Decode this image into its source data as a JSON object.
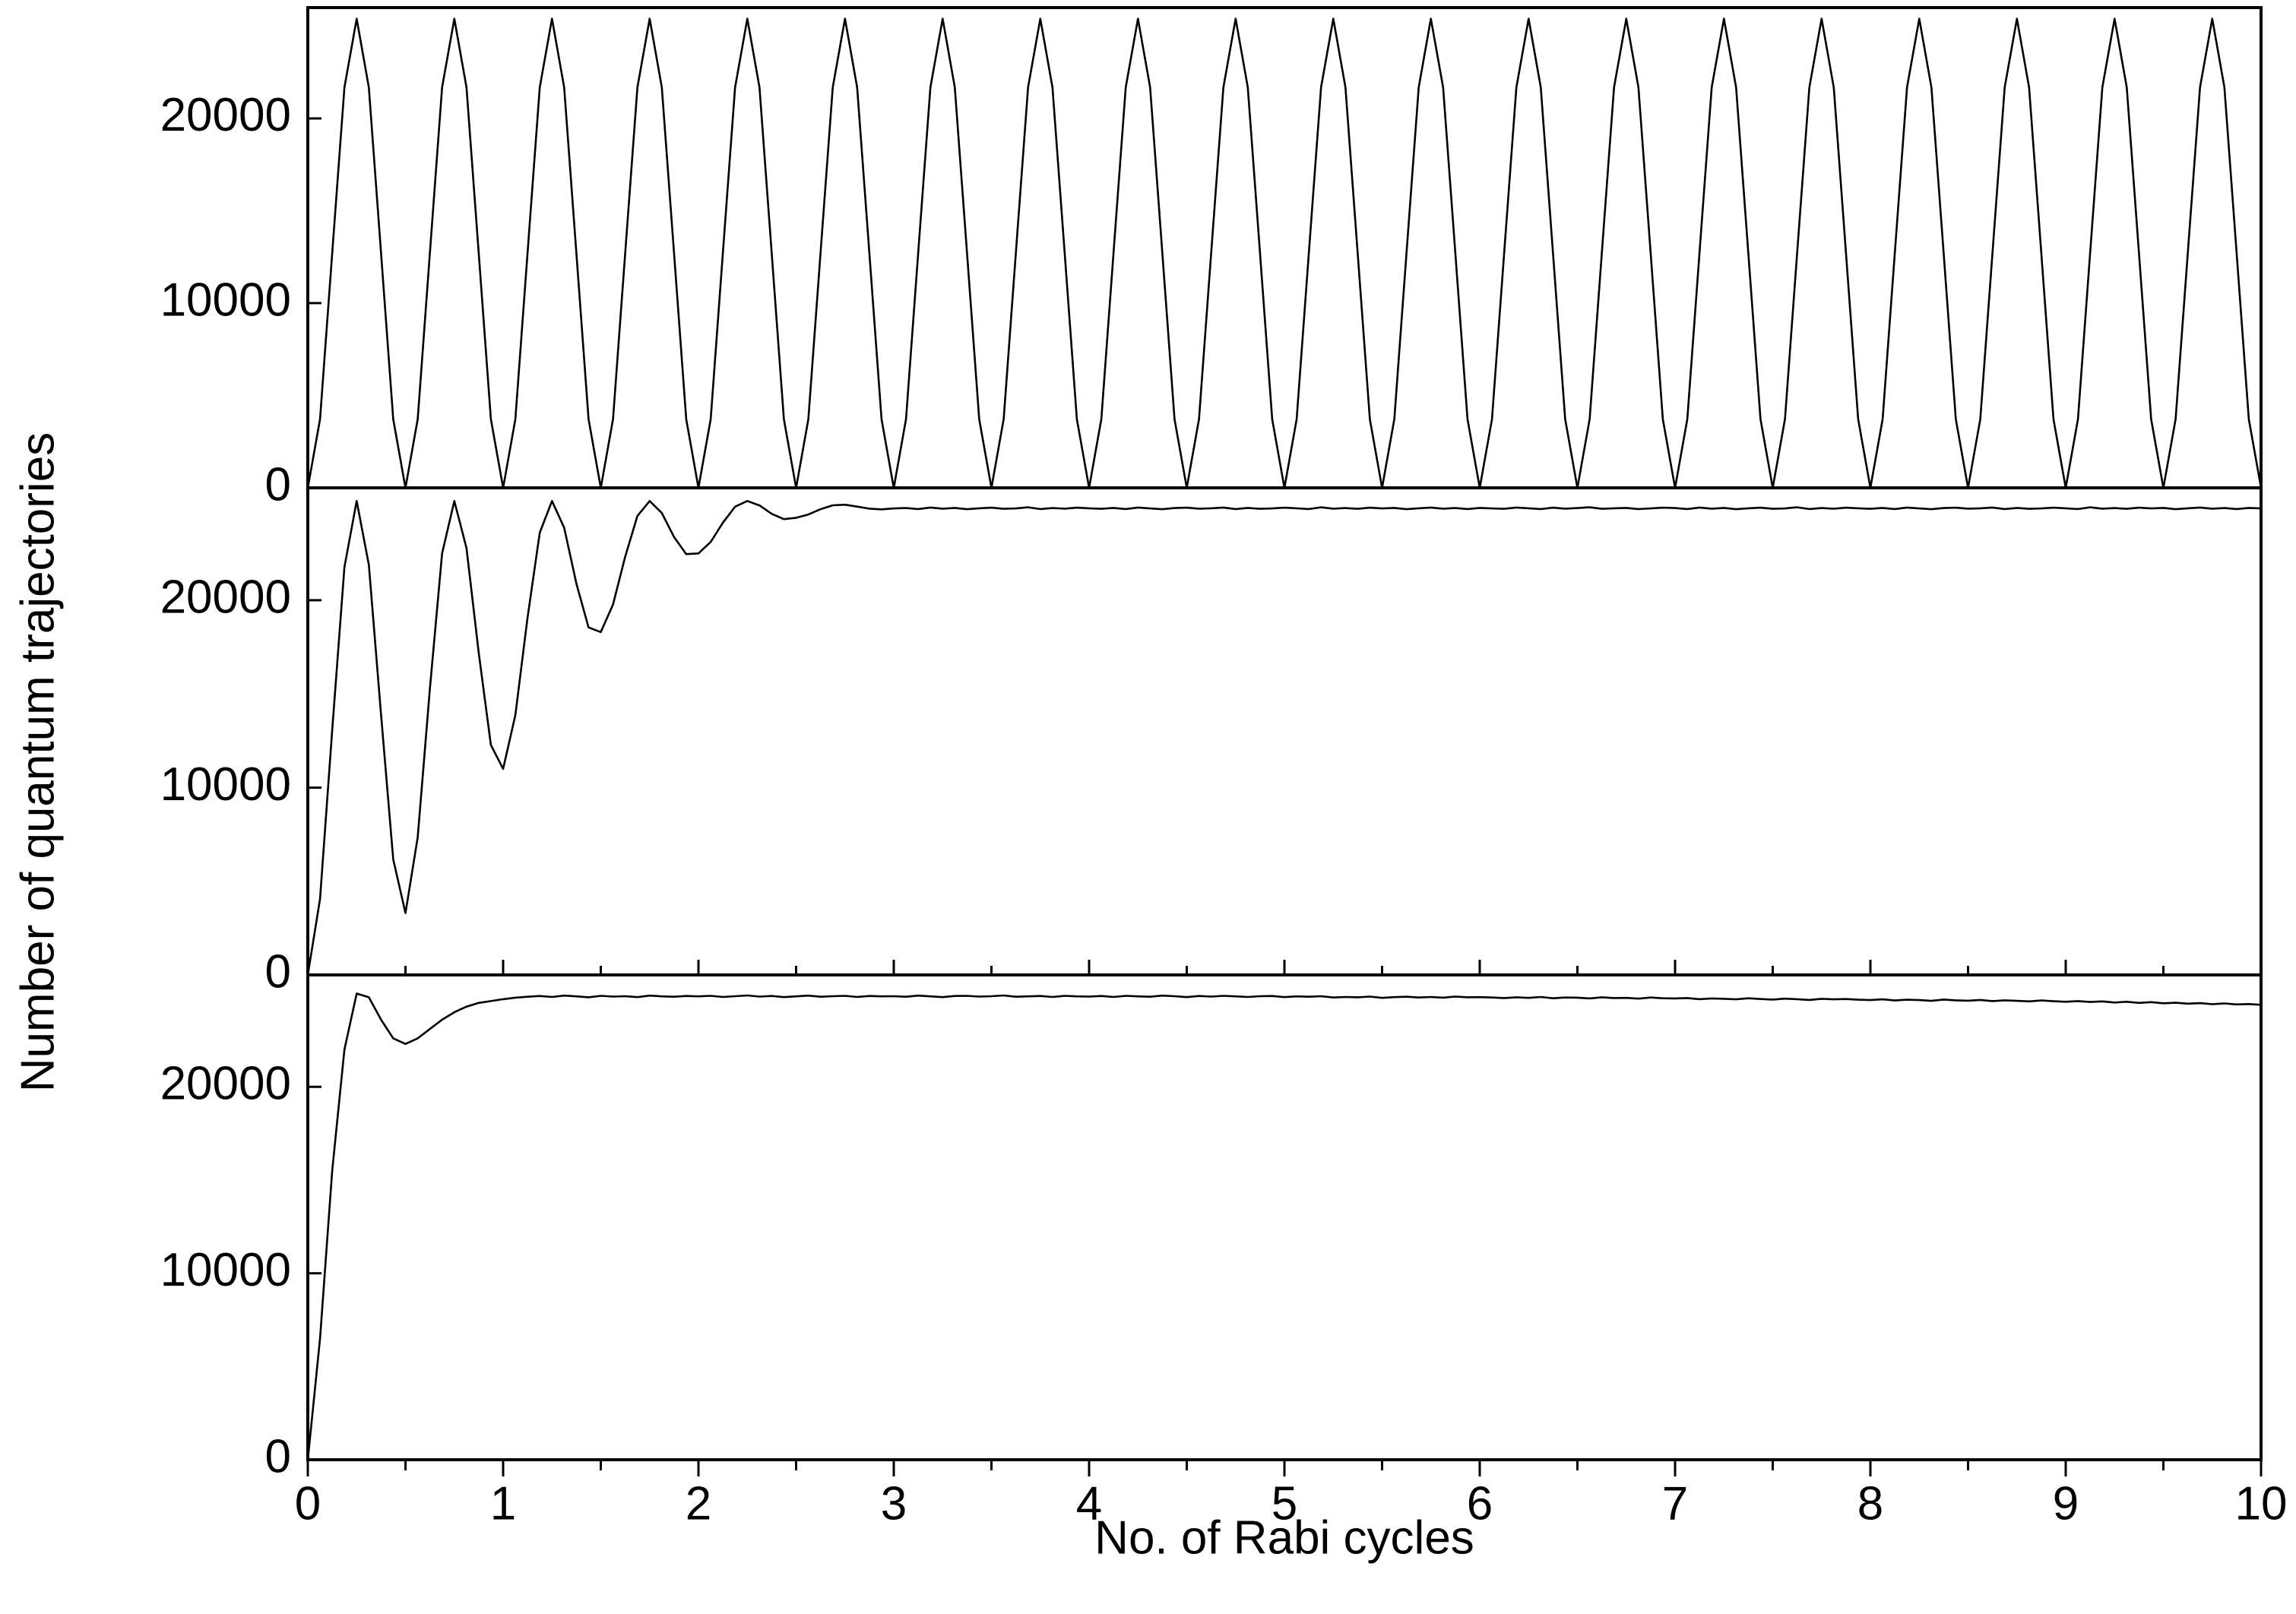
{
  "chart_data": [
    {
      "type": "line",
      "xlim": [
        0,
        10
      ],
      "ylim": [
        0,
        26000
      ],
      "yticks": [
        0,
        10000,
        20000
      ],
      "x": [
        0,
        0.0625,
        0.125,
        0.1875,
        0.25,
        0.3125,
        0.375,
        0.4375,
        0.5,
        0.5625,
        0.625,
        0.6875,
        0.75,
        0.8125,
        0.875,
        0.9375,
        1,
        1.0625,
        1.125,
        1.1875,
        1.25,
        1.3125,
        1.375,
        1.4375,
        1.5,
        1.5625,
        1.625,
        1.6875,
        1.75,
        1.8125,
        1.875,
        1.9375,
        2,
        2.0625,
        2.125,
        2.1875,
        2.25,
        2.3125,
        2.375,
        2.4375,
        2.5,
        2.5625,
        2.625,
        2.6875,
        2.75,
        2.8125,
        2.875,
        2.9375,
        3,
        3.0625,
        3.125,
        3.1875,
        3.25,
        3.3125,
        3.375,
        3.4375,
        3.5,
        3.5625,
        3.625,
        3.6875,
        3.75,
        3.8125,
        3.875,
        3.9375,
        4,
        4.0625,
        4.125,
        4.1875,
        4.25,
        4.3125,
        4.375,
        4.4375,
        4.5,
        4.5625,
        4.625,
        4.6875,
        4.75,
        4.8125,
        4.875,
        4.9375,
        5,
        5.0625,
        5.125,
        5.1875,
        5.25,
        5.3125,
        5.375,
        5.4375,
        5.5,
        5.5625,
        5.625,
        5.6875,
        5.75,
        5.8125,
        5.875,
        5.9375,
        6,
        6.0625,
        6.125,
        6.1875,
        6.25,
        6.3125,
        6.375,
        6.4375,
        6.5,
        6.5625,
        6.625,
        6.6875,
        6.75,
        6.8125,
        6.875,
        6.9375,
        7,
        7.0625,
        7.125,
        7.1875,
        7.25,
        7.3125,
        7.375,
        7.4375,
        7.5,
        7.5625,
        7.625,
        7.6875,
        7.75,
        7.8125,
        7.875,
        7.9375,
        8,
        8.0625,
        8.125,
        8.1875,
        8.25,
        8.3125,
        8.375,
        8.4375,
        8.5,
        8.5625,
        8.625,
        8.6875,
        8.75,
        8.8125,
        8.875,
        8.9375,
        9,
        9.0625,
        9.125,
        9.1875,
        9.25,
        9.3125,
        9.375,
        9.4375,
        9.5,
        9.5625,
        9.625,
        9.6875,
        9.75,
        9.8125,
        9.875,
        9.9375,
        10
      ],
      "series": [
        {
          "color": "#000000",
          "values": [
            0,
            3719,
            12700,
            21681,
            25400,
            21681,
            12700,
            3719,
            0,
            3719,
            12700,
            21681,
            25400,
            21681,
            12700,
            3719,
            0,
            3719,
            12700,
            21681,
            25400,
            21681,
            12700,
            3719,
            0,
            3719,
            12700,
            21681,
            25400,
            21681,
            12700,
            3719,
            0,
            3719,
            12700,
            21681,
            25400,
            21681,
            12700,
            3719,
            0,
            3719,
            12700,
            21681,
            25400,
            21681,
            12700,
            3719,
            0,
            3719,
            12700,
            21681,
            25400,
            21681,
            12700,
            3719,
            0,
            3719,
            12700,
            21681,
            25400,
            21681,
            12700,
            3719,
            0,
            3719,
            12700,
            21681,
            25400,
            21681,
            12700,
            3719,
            0,
            3719,
            12700,
            21681,
            25400,
            21681,
            12700,
            3719,
            0,
            3719,
            12700,
            21681,
            25400,
            21681,
            12700,
            3719,
            0,
            3719,
            12700,
            21681,
            25400,
            21681,
            12700,
            3719,
            0,
            3719,
            12700,
            21681,
            25400,
            21681,
            12700,
            3719,
            0,
            3719,
            12700,
            21681,
            25400,
            21681,
            12700,
            3719,
            0,
            3719,
            12700,
            21681,
            25400,
            21681,
            12700,
            3719,
            0,
            3719,
            12700,
            21681,
            25400,
            21681,
            12700,
            3719,
            0,
            3719,
            12700,
            21681,
            25400,
            21681,
            12700,
            3719,
            0,
            3719,
            12700,
            21681,
            25400,
            21681,
            12700,
            3719,
            0,
            3719,
            12700,
            21681,
            25400,
            21681,
            12700,
            3719,
            0,
            3719,
            12700,
            21681,
            25400,
            21681,
            12700,
            3719,
            0
          ]
        }
      ]
    },
    {
      "type": "line",
      "xlim": [
        0,
        10
      ],
      "ylim": [
        0,
        26000
      ],
      "yticks": [
        0,
        10000,
        20000
      ],
      "ylabel": "Number of quantum trajectories",
      "x": [
        0,
        0.0625,
        0.125,
        0.1875,
        0.25,
        0.3125,
        0.375,
        0.4375,
        0.5,
        0.5625,
        0.625,
        0.6875,
        0.75,
        0.8125,
        0.875,
        0.9375,
        1,
        1.0625,
        1.125,
        1.1875,
        1.25,
        1.3125,
        1.375,
        1.4375,
        1.5,
        1.5625,
        1.625,
        1.6875,
        1.75,
        1.8125,
        1.875,
        1.9375,
        2,
        2.0625,
        2.125,
        2.1875,
        2.25,
        2.3125,
        2.375,
        2.4375,
        2.5,
        2.5625,
        2.625,
        2.6875,
        2.75,
        2.8125,
        2.875,
        2.9375,
        3,
        3.0625,
        3.125,
        3.1875,
        3.25,
        3.3125,
        3.375,
        3.4375,
        3.5,
        3.5625,
        3.625,
        3.6875,
        3.75,
        3.8125,
        3.875,
        3.9375,
        4,
        4.0625,
        4.125,
        4.1875,
        4.25,
        4.3125,
        4.375,
        4.4375,
        4.5,
        4.5625,
        4.625,
        4.6875,
        4.75,
        4.8125,
        4.875,
        4.9375,
        5,
        5.0625,
        5.125,
        5.1875,
        5.25,
        5.3125,
        5.375,
        5.4375,
        5.5,
        5.5625,
        5.625,
        5.6875,
        5.75,
        5.8125,
        5.875,
        5.9375,
        6,
        6.0625,
        6.125,
        6.1875,
        6.25,
        6.3125,
        6.375,
        6.4375,
        6.5,
        6.5625,
        6.625,
        6.6875,
        6.75,
        6.8125,
        6.875,
        6.9375,
        7,
        7.0625,
        7.125,
        7.1875,
        7.25,
        7.3125,
        7.375,
        7.4375,
        7.5,
        7.5625,
        7.625,
        7.6875,
        7.75,
        7.8125,
        7.875,
        7.9375,
        8,
        8.0625,
        8.125,
        8.1875,
        8.25,
        8.3125,
        8.375,
        8.4375,
        8.5,
        8.5625,
        8.625,
        8.6875,
        8.75,
        8.8125,
        8.875,
        8.9375,
        9,
        9.0625,
        9.125,
        9.1875,
        9.25,
        9.3125,
        9.375,
        9.4375,
        9.5,
        9.5625,
        9.625,
        9.6875,
        9.75,
        9.8125,
        9.875,
        9.9375,
        10
      ],
      "series": [
        {
          "color": "#000000",
          "values": [
            0,
            4058,
            13062,
            21774,
            25300,
            21896,
            13888,
            6171,
            3300,
            7344,
            15262,
            22500,
            25300,
            22782,
            17188,
            12274,
            11000,
            13873,
            19062,
            23606,
            25300,
            23873,
            20888,
            18547,
            18300,
            19773,
            22325,
            24505,
            25300,
            24659,
            23375,
            22463,
            22500,
            23113,
            24138,
            24994,
            25300,
            25064,
            24612,
            24329,
            24400,
            24577,
            24862,
            25068,
            25100,
            25000,
            24888,
            24854,
            24900,
            24920,
            24870,
            24950,
            24890,
            24930,
            24860,
            24910,
            24940,
            24880,
            24900,
            24960,
            24870,
            24920,
            24890,
            24940,
            24910,
            24880,
            24930,
            24870,
            24950,
            24900,
            24860,
            24920,
            24940,
            24890,
            24910,
            24950,
            24870,
            24930,
            24880,
            24900,
            24940,
            24910,
            24870,
            24960,
            24890,
            24920,
            24880,
            24940,
            24900,
            24930,
            24860,
            24910,
            24950,
            24890,
            24920,
            24870,
            24930,
            24900,
            24880,
            24950,
            24910,
            24870,
            24940,
            24890,
            24920,
            24960,
            24880,
            24910,
            24930,
            24870,
            24900,
            24940,
            24920,
            24870,
            24950,
            24890,
            24930,
            24860,
            24910,
            24940,
            24880,
            24900,
            24960,
            24870,
            24920,
            24890,
            24940,
            24910,
            24880,
            24930,
            24870,
            24950,
            24900,
            24860,
            24920,
            24940,
            24890,
            24910,
            24950,
            24870,
            24930,
            24880,
            24900,
            24940,
            24910,
            24870,
            24960,
            24890,
            24920,
            24880,
            24940,
            24900,
            24930,
            24860,
            24910,
            24950,
            24890,
            24920,
            24870,
            24930,
            24900
          ]
        }
      ]
    },
    {
      "type": "line",
      "xlim": [
        0,
        10
      ],
      "ylim": [
        0,
        26000
      ],
      "yticks": [
        0,
        10000,
        20000
      ],
      "xticks": [
        0,
        1,
        2,
        3,
        4,
        5,
        6,
        7,
        8,
        9,
        10
      ],
      "xminor_ticks": [
        0.5,
        1.5,
        2.5,
        3.5,
        4.5,
        5.5,
        6.5,
        7.5,
        8.5,
        9.5
      ],
      "xlabel": "No. of Rabi cycles",
      "x": [
        0,
        0.0625,
        0.125,
        0.1875,
        0.25,
        0.3125,
        0.375,
        0.4375,
        0.5,
        0.5625,
        0.625,
        0.6875,
        0.75,
        0.8125,
        0.875,
        0.9375,
        1,
        1.0625,
        1.125,
        1.1875,
        1.25,
        1.3125,
        1.375,
        1.4375,
        1.5,
        1.5625,
        1.625,
        1.6875,
        1.75,
        1.8125,
        1.875,
        1.9375,
        2,
        2.0625,
        2.125,
        2.1875,
        2.25,
        2.3125,
        2.375,
        2.4375,
        2.5,
        2.5625,
        2.625,
        2.6875,
        2.75,
        2.8125,
        2.875,
        2.9375,
        3,
        3.0625,
        3.125,
        3.1875,
        3.25,
        3.3125,
        3.375,
        3.4375,
        3.5,
        3.5625,
        3.625,
        3.6875,
        3.75,
        3.8125,
        3.875,
        3.9375,
        4,
        4.0625,
        4.125,
        4.1875,
        4.25,
        4.3125,
        4.375,
        4.4375,
        4.5,
        4.5625,
        4.625,
        4.6875,
        4.75,
        4.8125,
        4.875,
        4.9375,
        5,
        5.0625,
        5.125,
        5.1875,
        5.25,
        5.3125,
        5.375,
        5.4375,
        5.5,
        5.5625,
        5.625,
        5.6875,
        5.75,
        5.8125,
        5.875,
        5.9375,
        6,
        6.0625,
        6.125,
        6.1875,
        6.25,
        6.3125,
        6.375,
        6.4375,
        6.5,
        6.5625,
        6.625,
        6.6875,
        6.75,
        6.8125,
        6.875,
        6.9375,
        7,
        7.0625,
        7.125,
        7.1875,
        7.25,
        7.3125,
        7.375,
        7.4375,
        7.5,
        7.5625,
        7.625,
        7.6875,
        7.75,
        7.8125,
        7.875,
        7.9375,
        8,
        8.0625,
        8.125,
        8.1875,
        8.25,
        8.3125,
        8.375,
        8.4375,
        8.5,
        8.5625,
        8.625,
        8.6875,
        8.75,
        8.8125,
        8.875,
        8.9375,
        9,
        9.0625,
        9.125,
        9.1875,
        9.25,
        9.3125,
        9.375,
        9.4375,
        9.5,
        9.5625,
        9.625,
        9.6875,
        9.75,
        9.8125,
        9.875,
        9.9375,
        10
      ],
      "series": [
        {
          "color": "#000000",
          "values": [
            0,
            6500,
            15500,
            22000,
            25000,
            24800,
            23600,
            22600,
            22300,
            22600,
            23100,
            23600,
            24000,
            24300,
            24500,
            24600,
            24700,
            24780,
            24830,
            24870,
            24820,
            24890,
            24850,
            24800,
            24880,
            24840,
            24860,
            24810,
            24890,
            24850,
            24830,
            24870,
            24850,
            24880,
            24820,
            24860,
            24900,
            24840,
            24870,
            24810,
            24850,
            24890,
            24830,
            24860,
            24880,
            24820,
            24870,
            24850,
            24860,
            24830,
            24890,
            24850,
            24810,
            24870,
            24880,
            24840,
            24860,
            24900,
            24830,
            24850,
            24870,
            24820,
            24880,
            24850,
            24840,
            24870,
            24820,
            24880,
            24850,
            24830,
            24890,
            24860,
            24810,
            24870,
            24840,
            24880,
            24850,
            24820,
            24860,
            24870,
            24810,
            24850,
            24830,
            24860,
            24790,
            24820,
            24800,
            24840,
            24770,
            24810,
            24830,
            24790,
            24820,
            24780,
            24840,
            24800,
            24810,
            24790,
            24760,
            24800,
            24770,
            24820,
            24750,
            24790,
            24780,
            24740,
            24800,
            24760,
            24770,
            24730,
            24790,
            24750,
            24740,
            24760,
            24700,
            24740,
            24720,
            24690,
            24750,
            24710,
            24680,
            24730,
            24700,
            24660,
            24720,
            24690,
            24710,
            24670,
            24650,
            24690,
            24630,
            24670,
            24650,
            24610,
            24680,
            24640,
            24620,
            24660,
            24600,
            24640,
            24610,
            24580,
            24630,
            24590,
            24560,
            24600,
            24550,
            24580,
            24520,
            24560,
            24500,
            24540,
            24480,
            24510,
            24460,
            24490,
            24430,
            24470,
            24420,
            24440,
            24400
          ]
        }
      ]
    }
  ]
}
